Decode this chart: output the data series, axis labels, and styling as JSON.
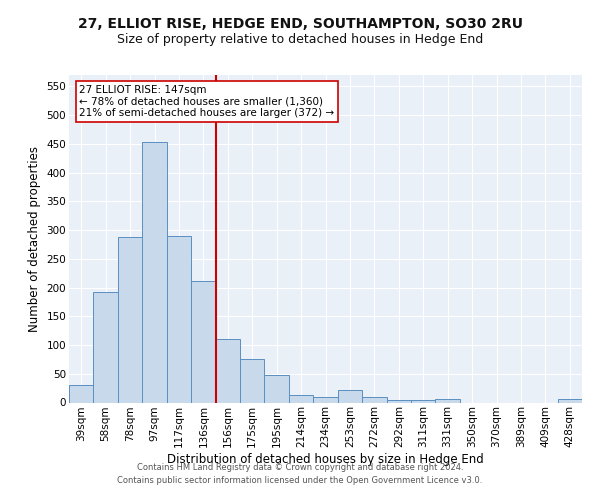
{
  "title_line1": "27, ELLIOT RISE, HEDGE END, SOUTHAMPTON, SO30 2RU",
  "title_line2": "Size of property relative to detached houses in Hedge End",
  "xlabel": "Distribution of detached houses by size in Hedge End",
  "ylabel": "Number of detached properties",
  "categories": [
    "39sqm",
    "58sqm",
    "78sqm",
    "97sqm",
    "117sqm",
    "136sqm",
    "156sqm",
    "175sqm",
    "195sqm",
    "214sqm",
    "234sqm",
    "253sqm",
    "272sqm",
    "292sqm",
    "311sqm",
    "331sqm",
    "350sqm",
    "370sqm",
    "389sqm",
    "409sqm",
    "428sqm"
  ],
  "values": [
    30,
    192,
    288,
    453,
    290,
    212,
    110,
    75,
    47,
    13,
    10,
    22,
    9,
    5,
    5,
    6,
    0,
    0,
    0,
    0,
    6
  ],
  "bar_color": "#c9d9ec",
  "bar_edge_color": "#5a8fc3",
  "vline_color": "#cc0000",
  "vline_pos": 5.5,
  "annotation_text": "27 ELLIOT RISE: 147sqm\n← 78% of detached houses are smaller (1,360)\n21% of semi-detached houses are larger (372) →",
  "annotation_box_color": "#ffffff",
  "annotation_box_edge_color": "#cc0000",
  "ylim": [
    0,
    570
  ],
  "yticks": [
    0,
    50,
    100,
    150,
    200,
    250,
    300,
    350,
    400,
    450,
    500,
    550
  ],
  "background_color": "#eaf0f8",
  "grid_color": "#ffffff",
  "footer_line1": "Contains HM Land Registry data © Crown copyright and database right 2024.",
  "footer_line2": "Contains public sector information licensed under the Open Government Licence v3.0.",
  "title_fontsize": 10,
  "subtitle_fontsize": 9,
  "tick_fontsize": 7.5,
  "ylabel_fontsize": 8.5,
  "xlabel_fontsize": 8.5,
  "footer_fontsize": 6,
  "fig_width": 6.0,
  "fig_height": 5.0,
  "fig_dpi": 100
}
